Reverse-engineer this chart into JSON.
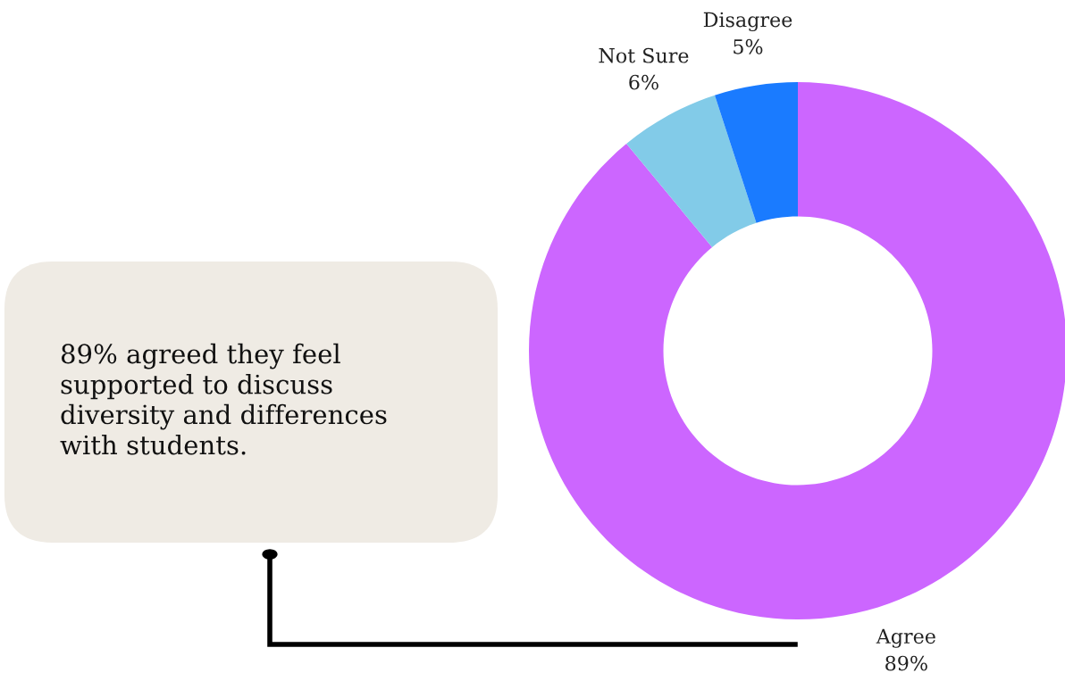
{
  "chart_data": {
    "type": "donut",
    "categories": [
      "Agree",
      "Not Sure",
      "Disagree"
    ],
    "values": [
      89,
      6,
      5
    ],
    "colors": [
      "#cc66ff",
      "#82cbe8",
      "#1a7bff"
    ],
    "value_labels": [
      "89%",
      "6%",
      "5%"
    ],
    "annotations": [
      "89% agreed they feel\nsupported to discuss\ndiversity and differences\nwith students."
    ]
  }
}
